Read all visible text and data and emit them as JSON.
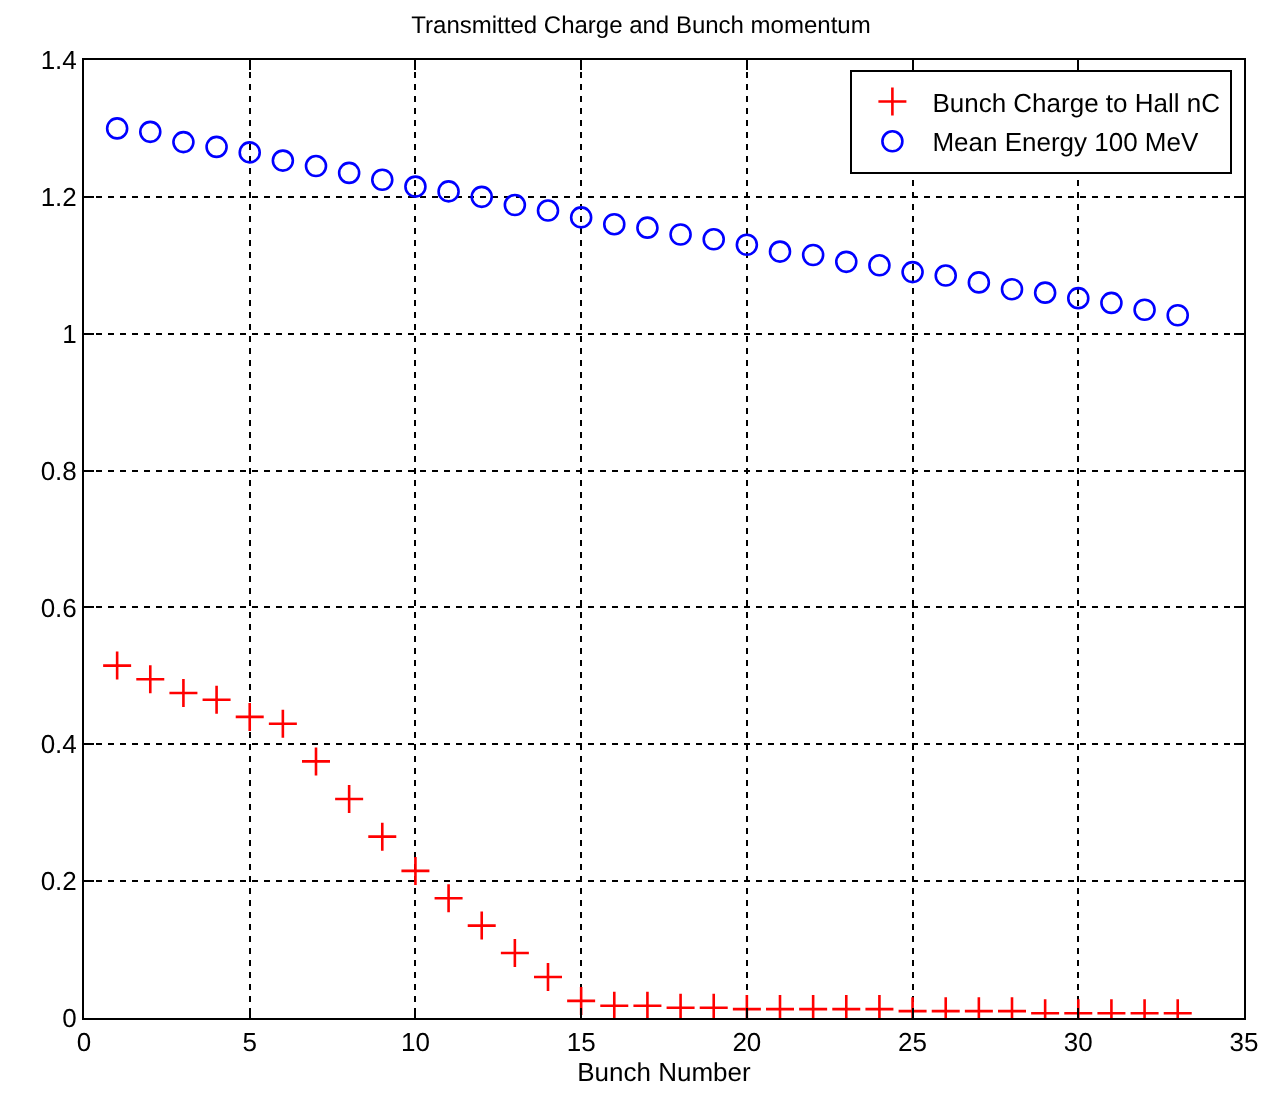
{
  "chart_data": {
    "type": "scatter",
    "title": "Transmitted Charge and Bunch momentum",
    "xlabel": "Bunch Number",
    "x": [
      1,
      2,
      3,
      4,
      5,
      6,
      7,
      8,
      9,
      10,
      11,
      12,
      13,
      14,
      15,
      16,
      17,
      18,
      19,
      20,
      21,
      22,
      23,
      24,
      25,
      26,
      27,
      28,
      29,
      30,
      31,
      32,
      33
    ],
    "series": [
      {
        "name": "Bunch Charge to Hall nC",
        "color": "#ff0000",
        "marker": "cross",
        "values": [
          0.515,
          0.495,
          0.475,
          0.465,
          0.44,
          0.43,
          0.375,
          0.32,
          0.265,
          0.215,
          0.175,
          0.135,
          0.095,
          0.06,
          0.025,
          0.018,
          0.018,
          0.015,
          0.015,
          0.013,
          0.013,
          0.013,
          0.013,
          0.013,
          0.01,
          0.01,
          0.01,
          0.01,
          0.007,
          0.007,
          0.007,
          0.007,
          0.007
        ]
      },
      {
        "name": "Mean Energy 100 MeV",
        "color": "#0000ff",
        "marker": "circle",
        "values": [
          1.3,
          1.295,
          1.28,
          1.273,
          1.265,
          1.253,
          1.245,
          1.235,
          1.225,
          1.215,
          1.208,
          1.2,
          1.188,
          1.18,
          1.17,
          1.16,
          1.155,
          1.145,
          1.138,
          1.13,
          1.12,
          1.115,
          1.105,
          1.1,
          1.09,
          1.085,
          1.075,
          1.065,
          1.06,
          1.052,
          1.045,
          1.035,
          1.027
        ]
      }
    ],
    "xlim": [
      0,
      35
    ],
    "xticks": [
      0,
      5,
      10,
      15,
      20,
      25,
      30,
      35
    ],
    "ylim": [
      0,
      1.4
    ],
    "yticks": [
      0,
      {
        "value": 0.2,
        "label": "0.2"
      },
      {
        "value": 0.4,
        "label": "0.4"
      },
      {
        "value": 0.6,
        "label": "0.6"
      },
      {
        "value": 0.8,
        "label": "0.8"
      },
      1,
      {
        "value": 1.2,
        "label": "1.2"
      },
      {
        "value": 1.4,
        "label": "1.4"
      }
    ],
    "grid": true,
    "legend": "top right"
  }
}
